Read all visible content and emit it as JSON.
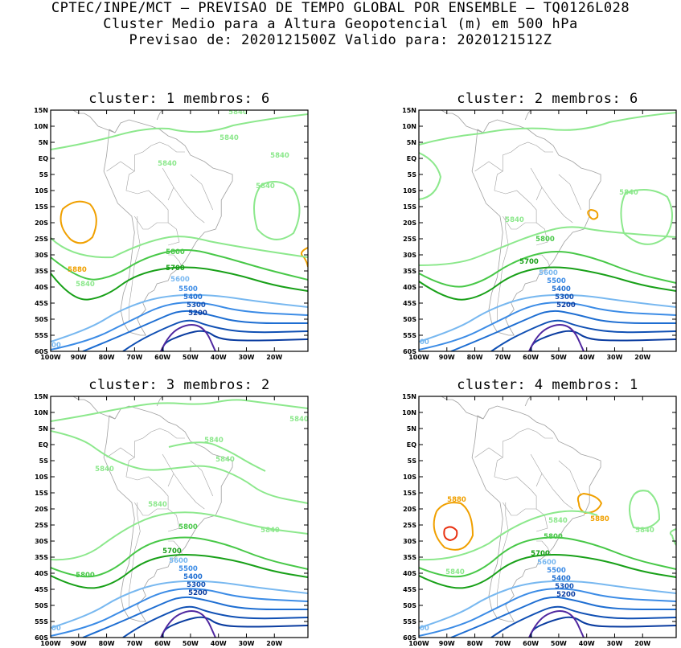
{
  "header": {
    "line1": "CPTEC/INPE/MCT – PREVISAO DE TEMPO GLOBAL POR ENSEMBLE – TQ0126L028",
    "line2": "Cluster Medio para a Altura Geopotencial (m) em 500 hPa",
    "line3": "Previsao de: 2020121500Z    Valido para: 2020121512Z"
  },
  "axes": {
    "lat_labels": [
      "15N",
      "10N",
      "5N",
      "EQ",
      "5S",
      "10S",
      "15S",
      "20S",
      "25S",
      "30S",
      "35S",
      "40S",
      "45S",
      "50S",
      "55S",
      "60S"
    ],
    "lon_labels": [
      "100W",
      "90W",
      "80W",
      "70W",
      "60W",
      "50W",
      "40W",
      "30W",
      "20W"
    ]
  },
  "colors": {
    "c5880": "#f0a000",
    "c5880_inner": "#e83010",
    "c5840": "#8ce88c",
    "c5800": "#48c848",
    "c5700": "#18a018",
    "c5600": "#78b8f0",
    "c5500": "#3c8ce6",
    "c5400": "#1e6ed2",
    "c5300": "#1050b4",
    "c5200": "#0a3ca0",
    "c5100": "#5028a0",
    "coast": "#a0a0a0"
  },
  "panels": [
    {
      "title": "cluster: 1   membros: 6",
      "labels": [
        "5840",
        "5840",
        "5840",
        "5840",
        "5840",
        "5880",
        "5840",
        "5800",
        "5700",
        "5600",
        "5500",
        "5400",
        "5300",
        "5200",
        "5600"
      ]
    },
    {
      "title": "cluster: 2   membros: 6",
      "labels": [
        "5840",
        "5840",
        "5800",
        "5700",
        "5600",
        "5500",
        "5400",
        "5300",
        "5200",
        "5600"
      ]
    },
    {
      "title": "cluster: 3   membros: 2",
      "labels": [
        "5840",
        "5840",
        "5840",
        "5840",
        "5840",
        "5840",
        "5800",
        "5800",
        "5700",
        "5600",
        "5500",
        "5400",
        "5300",
        "5200",
        "5600"
      ]
    },
    {
      "title": "cluster: 4   membros: 1",
      "labels": [
        "5880",
        "5880",
        "5840",
        "5840",
        "5840",
        "5800",
        "5700",
        "5600",
        "5500",
        "5400",
        "5300",
        "5200",
        "5600"
      ]
    }
  ]
}
